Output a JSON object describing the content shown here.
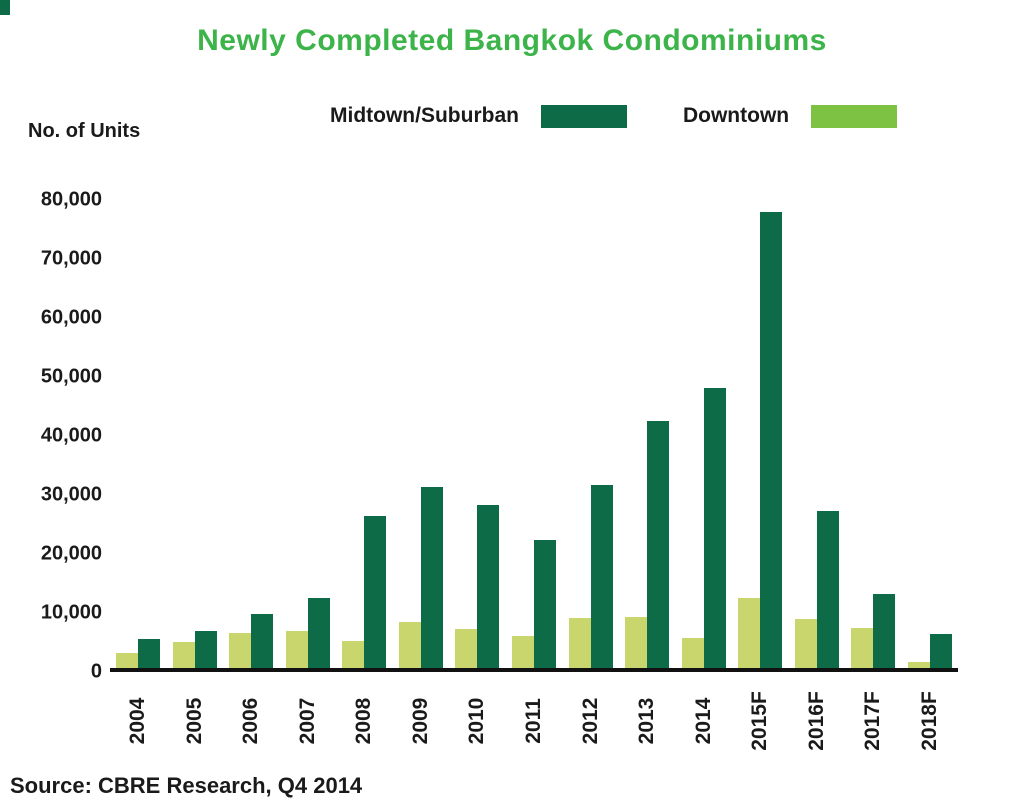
{
  "title": "Newly Completed Bangkok Condominiums",
  "ylabel": "No. of Units",
  "source": "Source: CBRE Research, Q4 2014",
  "colors": {
    "title": "#3cb44a",
    "midtown": "#0e6b47",
    "downtown_bar": "#c9d66e",
    "downtown_legend": "#7dc242",
    "axis": "#111111"
  },
  "legend": {
    "items": [
      {
        "label": "Midtown/Suburban",
        "color": "#0e6b47"
      },
      {
        "label": "Downtown",
        "color": "#7dc242"
      }
    ]
  },
  "chart_data": {
    "type": "bar",
    "title": "Newly Completed Bangkok Condominiums",
    "xlabel": "",
    "ylabel": "No. of Units",
    "categories": [
      "2004",
      "2005",
      "2006",
      "2007",
      "2008",
      "2009",
      "2010",
      "2011",
      "2012",
      "2013",
      "2014",
      "2015F",
      "2016F",
      "2017F",
      "2018F"
    ],
    "series": [
      {
        "name": "Downtown",
        "color": "#c9d66e",
        "values": [
          2500,
          4500,
          6000,
          6300,
          4700,
          7800,
          6700,
          5500,
          8500,
          8800,
          5200,
          12000,
          8300,
          6800,
          1000
        ]
      },
      {
        "name": "Midtown/Suburban",
        "color": "#0e6b47",
        "values": [
          5000,
          6300,
          9300,
          12000,
          26000,
          31000,
          27800,
          21800,
          31300,
          42300,
          47800,
          78000,
          26800,
          12700,
          5800
        ]
      }
    ],
    "ylim": [
      0,
      80000
    ],
    "yticks": [
      "0",
      "10,000",
      "20,000",
      "30,000",
      "40,000",
      "50,000",
      "60,000",
      "70,000",
      "80,000"
    ],
    "ytick_values": [
      0,
      10000,
      20000,
      30000,
      40000,
      50000,
      60000,
      70000,
      80000
    ],
    "grid": false,
    "legend_position": "top"
  }
}
